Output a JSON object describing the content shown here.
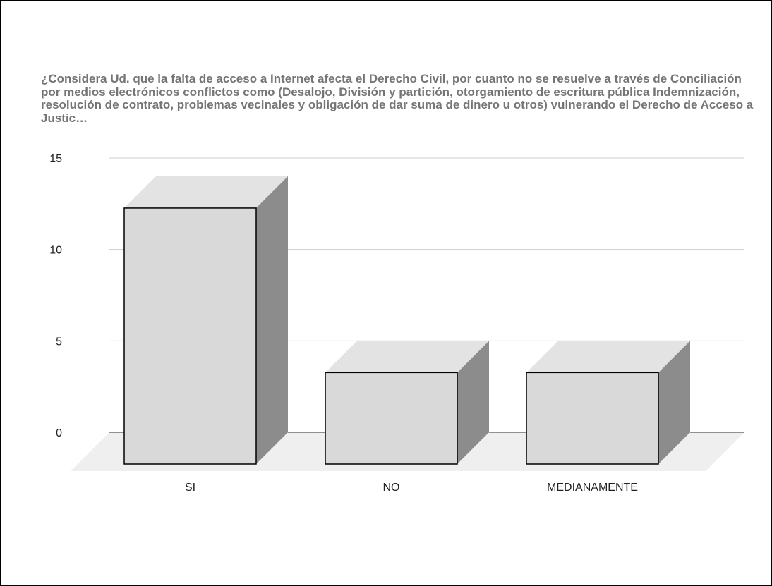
{
  "chart_data": {
    "type": "bar",
    "title": "¿Considera Ud. que la falta de acceso a Internet afecta el Derecho Civil, por cuanto no se resuelve a través de Conciliación por medios electrónicos conflictos como (Desalojo, División y partición, otorgamiento de escritura pública Indemnización, resolución de contrato, problemas vecinales y obligación de dar suma de dinero u otros) vulnerando el Derecho de Acceso a Justic…",
    "categories": [
      "SI",
      "NO",
      "MEDIANAMENTE"
    ],
    "values": [
      14,
      5,
      5
    ],
    "ylim": [
      0,
      15
    ],
    "yticks": [
      "0",
      "5",
      "10",
      "15"
    ],
    "xlabel": "",
    "ylabel": "",
    "grid": true,
    "style": "3d",
    "colors": {
      "bar_front": "#d9d9d9",
      "bar_top": "#e3e3e3",
      "bar_side": "#8c8c8c",
      "floor": "#efefef",
      "grid": "#cccccc",
      "baseline": "#333333",
      "title": "#757575"
    }
  }
}
